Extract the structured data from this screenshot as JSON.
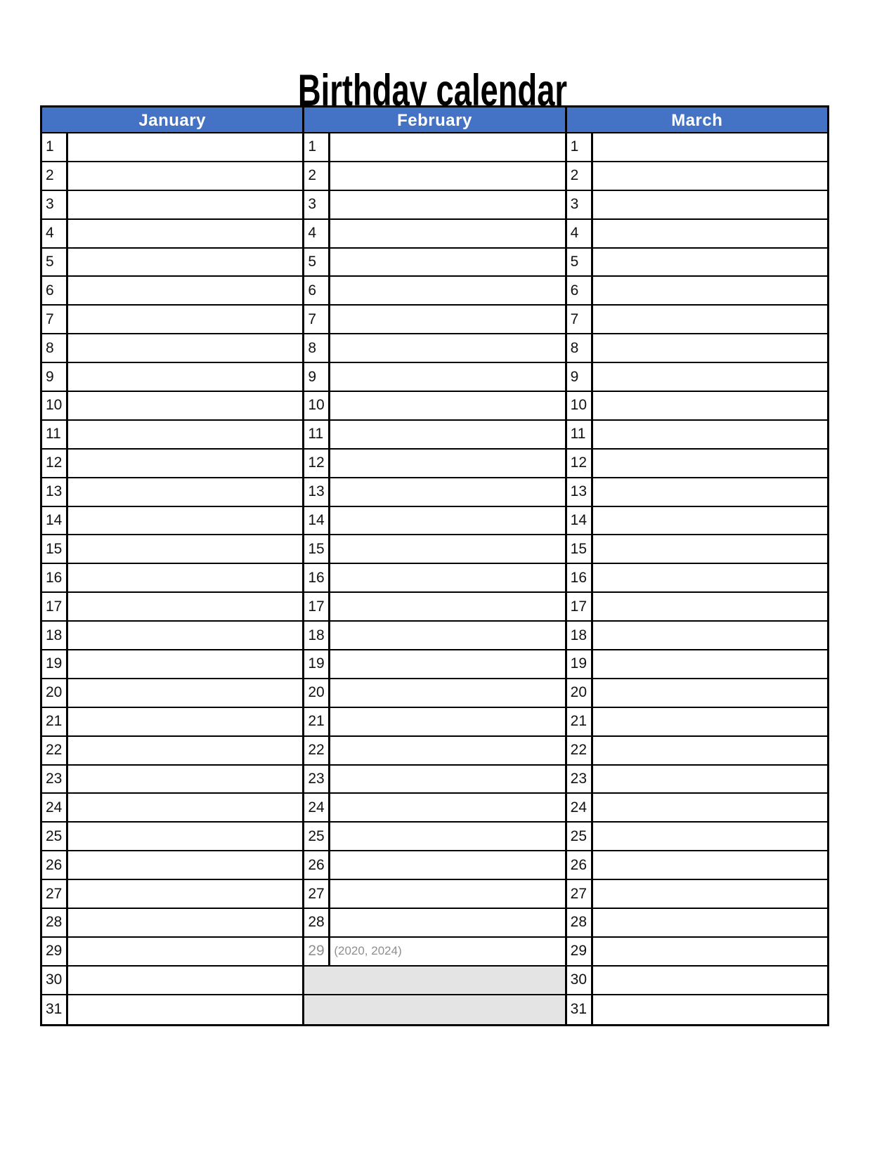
{
  "page": {
    "title": "Birthday calendar"
  },
  "colors": {
    "header_bg": "#4472C4",
    "header_text": "#FFFFFF",
    "grid_line": "#000000",
    "gray_fill": "#E4E4E4",
    "muted_text": "#8F8F8F",
    "day_text": "#111111"
  },
  "calendar": {
    "months": [
      {
        "name": "January",
        "rows": [
          {
            "day": "1"
          },
          {
            "day": "2"
          },
          {
            "day": "3"
          },
          {
            "day": "4"
          },
          {
            "day": "5"
          },
          {
            "day": "6"
          },
          {
            "day": "7"
          },
          {
            "day": "8"
          },
          {
            "day": "9"
          },
          {
            "day": "10"
          },
          {
            "day": "11"
          },
          {
            "day": "12"
          },
          {
            "day": "13"
          },
          {
            "day": "14"
          },
          {
            "day": "15"
          },
          {
            "day": "16"
          },
          {
            "day": "17"
          },
          {
            "day": "18"
          },
          {
            "day": "19"
          },
          {
            "day": "20"
          },
          {
            "day": "21"
          },
          {
            "day": "22"
          },
          {
            "day": "23"
          },
          {
            "day": "24"
          },
          {
            "day": "25"
          },
          {
            "day": "26"
          },
          {
            "day": "27"
          },
          {
            "day": "28"
          },
          {
            "day": "29"
          },
          {
            "day": "30"
          },
          {
            "day": "31"
          }
        ]
      },
      {
        "name": "February",
        "rows": [
          {
            "day": "1"
          },
          {
            "day": "2"
          },
          {
            "day": "3"
          },
          {
            "day": "4"
          },
          {
            "day": "5"
          },
          {
            "day": "6"
          },
          {
            "day": "7"
          },
          {
            "day": "8"
          },
          {
            "day": "9"
          },
          {
            "day": "10"
          },
          {
            "day": "11"
          },
          {
            "day": "12"
          },
          {
            "day": "13"
          },
          {
            "day": "14"
          },
          {
            "day": "15"
          },
          {
            "day": "16"
          },
          {
            "day": "17"
          },
          {
            "day": "18"
          },
          {
            "day": "19"
          },
          {
            "day": "20"
          },
          {
            "day": "21"
          },
          {
            "day": "22"
          },
          {
            "day": "23"
          },
          {
            "day": "24"
          },
          {
            "day": "25"
          },
          {
            "day": "26"
          },
          {
            "day": "27"
          },
          {
            "day": "28"
          },
          {
            "day": "29",
            "muted": true,
            "note": "(2020, 2024)"
          },
          {
            "type": "gray"
          },
          {
            "type": "gray"
          }
        ]
      },
      {
        "name": "March",
        "rows": [
          {
            "day": "1"
          },
          {
            "day": "2"
          },
          {
            "day": "3"
          },
          {
            "day": "4"
          },
          {
            "day": "5"
          },
          {
            "day": "6"
          },
          {
            "day": "7"
          },
          {
            "day": "8"
          },
          {
            "day": "9"
          },
          {
            "day": "10"
          },
          {
            "day": "11"
          },
          {
            "day": "12"
          },
          {
            "day": "13"
          },
          {
            "day": "14"
          },
          {
            "day": "15"
          },
          {
            "day": "16"
          },
          {
            "day": "17"
          },
          {
            "day": "18"
          },
          {
            "day": "19"
          },
          {
            "day": "20"
          },
          {
            "day": "21"
          },
          {
            "day": "22"
          },
          {
            "day": "23"
          },
          {
            "day": "24"
          },
          {
            "day": "25"
          },
          {
            "day": "26"
          },
          {
            "day": "27"
          },
          {
            "day": "28"
          },
          {
            "day": "29"
          },
          {
            "day": "30"
          },
          {
            "day": "31"
          }
        ]
      }
    ]
  }
}
